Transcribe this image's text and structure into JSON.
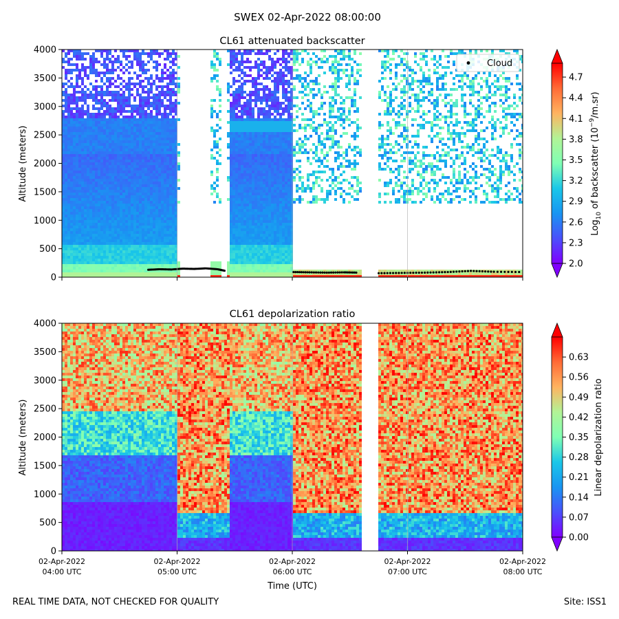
{
  "figure": {
    "suptitle": "SWEX 02-Apr-2022 08:00:00",
    "footer_left": "REAL TIME DATA, NOT CHECKED FOR QUALITY",
    "footer_right": "Site: ISS1"
  },
  "chart_data": [
    {
      "type": "heatmap",
      "title": "CL61 attenuated backscatter",
      "xlabel": "",
      "ylabel": "Altitude (meters)",
      "ylim": [
        0,
        4000
      ],
      "yticks": [
        0,
        500,
        1000,
        1500,
        2000,
        2500,
        3000,
        3500,
        4000
      ],
      "xlim_hours_utc": [
        4.0,
        8.0
      ],
      "xticks_hours_utc": [
        4,
        5,
        6,
        7,
        8
      ],
      "xtick_labels": [],
      "grid_x": true,
      "legend": {
        "position": "top-right",
        "entries": [
          "Cloud"
        ]
      },
      "colorbar": {
        "label_prefix": "Log",
        "label_sub": "10",
        "label_mid": " of backscatter (10",
        "label_sup": "−9",
        "label_suffix": "/m.sr)",
        "min": 2.0,
        "max": 4.9,
        "ticks": [
          "2.0",
          "2.3",
          "2.6",
          "2.9",
          "3.2",
          "3.5",
          "3.8",
          "4.1",
          "4.4",
          "4.7"
        ],
        "colormap": "rainbow",
        "extend": "both"
      },
      "data_gaps_hours_utc": [
        [
          5.02,
          5.28
        ],
        [
          5.37,
          5.43
        ],
        [
          6.59,
          6.74
        ]
      ],
      "cloud_base_series": {
        "name": "Cloud",
        "segments": [
          {
            "t": [
              4.75,
              4.85,
              4.95,
              5.05,
              5.15,
              5.25,
              5.35,
              5.42
            ],
            "alt_m": [
              130,
              140,
              135,
              150,
              145,
              155,
              140,
              110
            ]
          },
          {
            "t": [
              6.01,
              6.15,
              6.3,
              6.45,
              6.57
            ],
            "alt_m": [
              90,
              85,
              80,
              85,
              80
            ]
          },
          {
            "t": [
              6.75,
              6.95,
              7.15,
              7.35,
              7.55,
              7.75,
              8.0
            ],
            "alt_m": [
              70,
              75,
              80,
              90,
              110,
              95,
              90
            ]
          }
        ]
      }
    },
    {
      "type": "heatmap",
      "title": "CL61 depolarization ratio",
      "xlabel": "Time (UTC)",
      "ylabel": "Altitude (meters)",
      "ylim": [
        0,
        4000
      ],
      "yticks": [
        0,
        500,
        1000,
        1500,
        2000,
        2500,
        3000,
        3500,
        4000
      ],
      "xlim_hours_utc": [
        4.0,
        8.0
      ],
      "xticks_hours_utc": [
        4,
        5,
        6,
        7,
        8
      ],
      "xtick_labels": [
        [
          "02-Apr-2022",
          "04:00 UTC"
        ],
        [
          "02-Apr-2022",
          "05:00 UTC"
        ],
        [
          "02-Apr-2022",
          "06:00 UTC"
        ],
        [
          "02-Apr-2022",
          "07:00 UTC"
        ],
        [
          "02-Apr-2022",
          "08:00 UTC"
        ]
      ],
      "grid_x": true,
      "colorbar": {
        "label": "Linear depolarization ratio",
        "min": 0.0,
        "max": 0.7,
        "ticks": [
          "0.00",
          "0.07",
          "0.14",
          "0.21",
          "0.28",
          "0.35",
          "0.42",
          "0.49",
          "0.56",
          "0.63"
        ],
        "colormap": "rainbow",
        "extend": "both"
      },
      "data_gaps_hours_utc": [
        [
          6.59,
          6.74
        ]
      ]
    }
  ]
}
